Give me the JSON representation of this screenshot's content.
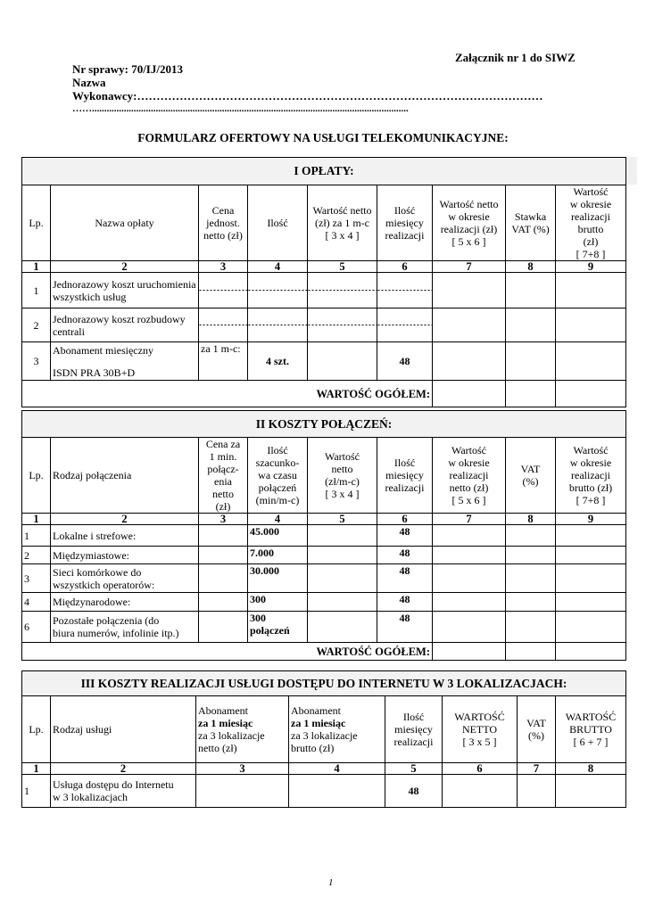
{
  "header": {
    "attachment": "Załącznik nr 1 do SIWZ",
    "case_number": "Nr sprawy: 70/IJ/2013",
    "contractor_label_1": "Nazwa",
    "contractor_label_2": "Wykonawcy:……………………………………………………………………………………………",
    "contractor_dots": "…….................................................................................................................................",
    "form_title": "FORMULARZ OFERTOWY NA USŁUGI TELEKOMUNIKACYJNE:"
  },
  "sections": [
    {
      "title": "I OPŁATY:",
      "header": [
        {
          "text": "Lp."
        },
        {
          "text": "Nazwa opłaty"
        },
        {
          "text": "Cena\njednost.\nnetto (zł)"
        },
        {
          "text": "Ilość"
        },
        {
          "text": "Wartość netto\n(zł) za 1 m-c\n[ 3 x 4 ]"
        },
        {
          "text": "Ilość\nmiesięcy\nrealizacji"
        },
        {
          "text": "Wartość netto\nw okresie\nrealizacji (zł)\n[ 5 x 6 ]"
        },
        {
          "text": "Stawka\nVAT (%)"
        },
        {
          "text": "Wartość\nw okresie\nrealizacji brutto\n(zł)\n[ 7+8 ]"
        }
      ],
      "numbers": [
        "1",
        "2",
        "3",
        "4",
        "5",
        "6",
        "7",
        "8",
        "9"
      ],
      "rows": [
        {
          "lp": "1",
          "name": "Jednorazowy koszt uruchomienia\nwszystkich usług",
          "cells": [
            "",
            "",
            "",
            "",
            "",
            "",
            ""
          ]
        },
        {
          "lp": "2",
          "name": "Jednorazowy koszt rozbudowy\ncentrali",
          "cells": [
            "",
            "",
            "",
            "",
            "",
            "",
            ""
          ]
        },
        {
          "lp": "3",
          "name": "Abonament miesięczny",
          "name_2": "ISDN PRA 30B+D",
          "cells": [
            "za 1 m-c:",
            "4 szt.",
            "",
            "48",
            "",
            "",
            ""
          ]
        }
      ],
      "total_label": "WARTOŚĆ OGÓŁEM:"
    },
    {
      "title": "II KOSZTY POŁĄCZEŃ:",
      "header": [
        {
          "text": "Lp."
        },
        {
          "text": "Rodzaj połączenia"
        },
        {
          "text": "Cena za\n1 min.\npołącz-\nenia\nnetto\n(zł)"
        },
        {
          "text": "Ilość\nszacunko-\nwa czasu\npołączeń\n(min/m-c)"
        },
        {
          "text": "Wartość\nnetto\n(zł/m-c)\n[ 3 x 4 ]"
        },
        {
          "text": "Ilość\nmiesięcy\nrealizacji"
        },
        {
          "text": "Wartość\nw okresie\nrealizacji\nnetto (zł)\n[ 5 x 6 ]"
        },
        {
          "text": "VAT\n(%)"
        },
        {
          "text": "Wartość\nw okresie\nrealizacji\nbrutto (zł)\n[ 7+8 ]"
        }
      ],
      "numbers": [
        "1",
        "2",
        "3",
        "4",
        "5",
        "6",
        "7",
        "8",
        "9"
      ],
      "rows": [
        {
          "lp": "1",
          "name": "Lokalne i strefowe:",
          "cells": [
            "",
            "45.000",
            "",
            "48",
            "",
            "",
            ""
          ]
        },
        {
          "lp": "2",
          "name": "Międzymiastowe:",
          "cells": [
            "",
            "7.000",
            "",
            "48",
            "",
            "",
            ""
          ]
        },
        {
          "lp": "3",
          "name": "Sieci komórkowe do\nwszystkich operatorów:",
          "cells": [
            "",
            "30.000",
            "",
            "48",
            "",
            "",
            ""
          ]
        },
        {
          "lp": "4",
          "name": "Międzynarodowe:",
          "cells": [
            "",
            "300",
            "",
            "48",
            "",
            "",
            ""
          ]
        },
        {
          "lp": "6",
          "name": "Pozostałe połączenia  (do\nbiura numerów, infolinie itp.)",
          "cells": [
            "",
            "300\npołączeń",
            "",
            "48",
            "",
            "",
            ""
          ]
        }
      ],
      "total_label": "WARTOŚĆ OGÓŁEM:"
    },
    {
      "title": "III KOSZTY REALIZACJI USŁUGI DOSTĘPU DO INTERNETU W 3 LOKALIZACJACH:",
      "header": [
        {
          "text": "Lp."
        },
        {
          "text": "Rodzaj usługi"
        },
        {
          "text": "Abonament",
          "bold": "za 1 miesiąc",
          "rest": "za 3 lokalizacje\nnetto (zł)"
        },
        {
          "text": "Abonament",
          "bold": "za 1 miesiąc",
          "rest": "za 3 lokalizacje\nbrutto (zł)"
        },
        {
          "text": "Ilość\nmiesięcy\nrealizacji"
        },
        {
          "text": "WARTOŚĆ\nNETTO\n[ 3 x 5 ]"
        },
        {
          "text": "VAT\n(%)"
        },
        {
          "text": "WARTOŚĆ\nBRUTTO\n[ 6 + 7 ]"
        }
      ],
      "numbers": [
        "1",
        "2",
        "3",
        "4",
        "5",
        "6",
        "7",
        "8"
      ],
      "rows": [
        {
          "lp": "1",
          "name": "Usługa dostępu do Internetu\nw 3 lokalizacjach",
          "cells": [
            "",
            "",
            "48",
            "",
            "",
            ""
          ]
        }
      ]
    }
  ],
  "footer": {
    "page_number": "1"
  }
}
